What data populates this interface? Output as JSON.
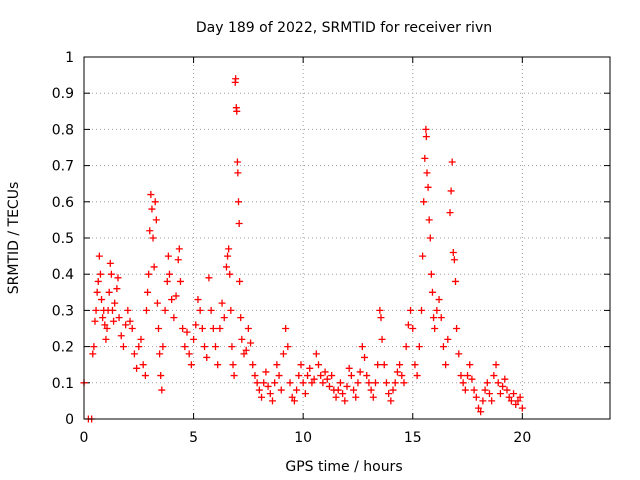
{
  "chart_data": {
    "type": "scatter",
    "title": "Day 189 of 2022, SRMTID for receiver rivn",
    "xlabel": "GPS time / hours",
    "ylabel": "SRMTID / TECUs",
    "xlim": [
      0,
      24
    ],
    "ylim": [
      0,
      1
    ],
    "xticks": [
      0,
      5,
      10,
      15,
      20
    ],
    "xtick_labels": [
      "0",
      "5",
      "10",
      "15",
      "20"
    ],
    "yticks": [
      0,
      0.1,
      0.2,
      0.3,
      0.4,
      0.5,
      0.6,
      0.7,
      0.8,
      0.9,
      1
    ],
    "ytick_labels": [
      "0",
      "0.1",
      "0.2",
      "0.3",
      "0.4",
      "0.5",
      "0.6",
      "0.7",
      "0.8",
      "0.9",
      "1"
    ],
    "grid": true,
    "marker": "+",
    "series": [
      {
        "name": "SRMTID",
        "color": "#ff0000",
        "points": [
          [
            0.0,
            0.1
          ],
          [
            0.2,
            0.0
          ],
          [
            0.35,
            0.0
          ],
          [
            0.4,
            0.18
          ],
          [
            0.45,
            0.2
          ],
          [
            0.5,
            0.27
          ],
          [
            0.55,
            0.3
          ],
          [
            0.6,
            0.35
          ],
          [
            0.65,
            0.38
          ],
          [
            0.7,
            0.45
          ],
          [
            0.75,
            0.4
          ],
          [
            0.8,
            0.33
          ],
          [
            0.85,
            0.28
          ],
          [
            0.9,
            0.3
          ],
          [
            0.95,
            0.26
          ],
          [
            1.0,
            0.22
          ],
          [
            1.05,
            0.25
          ],
          [
            1.1,
            0.3
          ],
          [
            1.15,
            0.35
          ],
          [
            1.2,
            0.43
          ],
          [
            1.25,
            0.4
          ],
          [
            1.3,
            0.3
          ],
          [
            1.35,
            0.27
          ],
          [
            1.4,
            0.32
          ],
          [
            1.5,
            0.36
          ],
          [
            1.55,
            0.39
          ],
          [
            1.6,
            0.28
          ],
          [
            1.7,
            0.23
          ],
          [
            1.8,
            0.2
          ],
          [
            1.9,
            0.26
          ],
          [
            2.0,
            0.3
          ],
          [
            2.1,
            0.27
          ],
          [
            2.2,
            0.25
          ],
          [
            2.3,
            0.18
          ],
          [
            2.4,
            0.14
          ],
          [
            2.5,
            0.2
          ],
          [
            2.6,
            0.22
          ],
          [
            2.7,
            0.15
          ],
          [
            2.8,
            0.12
          ],
          [
            2.85,
            0.3
          ],
          [
            2.9,
            0.35
          ],
          [
            2.95,
            0.4
          ],
          [
            3.0,
            0.52
          ],
          [
            3.05,
            0.62
          ],
          [
            3.1,
            0.58
          ],
          [
            3.15,
            0.5
          ],
          [
            3.2,
            0.42
          ],
          [
            3.25,
            0.6
          ],
          [
            3.3,
            0.55
          ],
          [
            3.35,
            0.32
          ],
          [
            3.4,
            0.25
          ],
          [
            3.45,
            0.18
          ],
          [
            3.5,
            0.12
          ],
          [
            3.55,
            0.08
          ],
          [
            3.6,
            0.2
          ],
          [
            3.7,
            0.3
          ],
          [
            3.8,
            0.38
          ],
          [
            3.85,
            0.45
          ],
          [
            3.9,
            0.4
          ],
          [
            4.0,
            0.33
          ],
          [
            4.1,
            0.28
          ],
          [
            4.2,
            0.34
          ],
          [
            4.3,
            0.44
          ],
          [
            4.35,
            0.47
          ],
          [
            4.4,
            0.38
          ],
          [
            4.5,
            0.25
          ],
          [
            4.6,
            0.2
          ],
          [
            4.7,
            0.24
          ],
          [
            4.8,
            0.18
          ],
          [
            4.9,
            0.15
          ],
          [
            5.0,
            0.22
          ],
          [
            5.1,
            0.26
          ],
          [
            5.2,
            0.33
          ],
          [
            5.3,
            0.3
          ],
          [
            5.4,
            0.25
          ],
          [
            5.5,
            0.2
          ],
          [
            5.6,
            0.17
          ],
          [
            5.7,
            0.39
          ],
          [
            5.8,
            0.3
          ],
          [
            5.9,
            0.25
          ],
          [
            6.0,
            0.2
          ],
          [
            6.1,
            0.15
          ],
          [
            6.2,
            0.25
          ],
          [
            6.3,
            0.32
          ],
          [
            6.4,
            0.28
          ],
          [
            6.5,
            0.42
          ],
          [
            6.55,
            0.45
          ],
          [
            6.6,
            0.47
          ],
          [
            6.65,
            0.4
          ],
          [
            6.7,
            0.3
          ],
          [
            6.75,
            0.2
          ],
          [
            6.8,
            0.15
          ],
          [
            6.85,
            0.12
          ],
          [
            6.9,
            0.93
          ],
          [
            6.92,
            0.94
          ],
          [
            6.95,
            0.86
          ],
          [
            6.97,
            0.85
          ],
          [
            7.0,
            0.71
          ],
          [
            7.02,
            0.68
          ],
          [
            7.05,
            0.6
          ],
          [
            7.08,
            0.54
          ],
          [
            7.1,
            0.38
          ],
          [
            7.15,
            0.28
          ],
          [
            7.2,
            0.22
          ],
          [
            7.3,
            0.18
          ],
          [
            7.4,
            0.19
          ],
          [
            7.5,
            0.25
          ],
          [
            7.6,
            0.21
          ],
          [
            7.7,
            0.15
          ],
          [
            7.8,
            0.12
          ],
          [
            7.9,
            0.1
          ],
          [
            8.0,
            0.08
          ],
          [
            8.1,
            0.06
          ],
          [
            8.2,
            0.1
          ],
          [
            8.3,
            0.13
          ],
          [
            8.4,
            0.09
          ],
          [
            8.5,
            0.07
          ],
          [
            8.6,
            0.05
          ],
          [
            8.7,
            0.1
          ],
          [
            8.8,
            0.15
          ],
          [
            8.9,
            0.12
          ],
          [
            9.0,
            0.08
          ],
          [
            9.1,
            0.18
          ],
          [
            9.2,
            0.25
          ],
          [
            9.3,
            0.2
          ],
          [
            9.4,
            0.1
          ],
          [
            9.5,
            0.06
          ],
          [
            9.6,
            0.05
          ],
          [
            9.7,
            0.08
          ],
          [
            9.8,
            0.12
          ],
          [
            9.9,
            0.15
          ],
          [
            10.0,
            0.1
          ],
          [
            10.1,
            0.07
          ],
          [
            10.2,
            0.12
          ],
          [
            10.3,
            0.14
          ],
          [
            10.4,
            0.1
          ],
          [
            10.5,
            0.11
          ],
          [
            10.6,
            0.18
          ],
          [
            10.7,
            0.15
          ],
          [
            10.8,
            0.12
          ],
          [
            10.9,
            0.1
          ],
          [
            11.0,
            0.13
          ],
          [
            11.1,
            0.11
          ],
          [
            11.2,
            0.09
          ],
          [
            11.3,
            0.12
          ],
          [
            11.4,
            0.08
          ],
          [
            11.5,
            0.06
          ],
          [
            11.6,
            0.08
          ],
          [
            11.7,
            0.1
          ],
          [
            11.8,
            0.07
          ],
          [
            11.9,
            0.05
          ],
          [
            12.0,
            0.09
          ],
          [
            12.1,
            0.14
          ],
          [
            12.2,
            0.12
          ],
          [
            12.3,
            0.08
          ],
          [
            12.4,
            0.06
          ],
          [
            12.5,
            0.1
          ],
          [
            12.6,
            0.13
          ],
          [
            12.7,
            0.2
          ],
          [
            12.8,
            0.17
          ],
          [
            12.9,
            0.12
          ],
          [
            13.0,
            0.1
          ],
          [
            13.1,
            0.08
          ],
          [
            13.2,
            0.06
          ],
          [
            13.3,
            0.1
          ],
          [
            13.4,
            0.15
          ],
          [
            13.5,
            0.3
          ],
          [
            13.55,
            0.28
          ],
          [
            13.6,
            0.22
          ],
          [
            13.7,
            0.15
          ],
          [
            13.8,
            0.1
          ],
          [
            13.9,
            0.07
          ],
          [
            14.0,
            0.05
          ],
          [
            14.1,
            0.08
          ],
          [
            14.2,
            0.1
          ],
          [
            14.3,
            0.13
          ],
          [
            14.4,
            0.15
          ],
          [
            14.5,
            0.12
          ],
          [
            14.6,
            0.1
          ],
          [
            14.7,
            0.2
          ],
          [
            14.8,
            0.26
          ],
          [
            14.9,
            0.3
          ],
          [
            15.0,
            0.25
          ],
          [
            15.1,
            0.15
          ],
          [
            15.2,
            0.12
          ],
          [
            15.3,
            0.2
          ],
          [
            15.4,
            0.3
          ],
          [
            15.45,
            0.45
          ],
          [
            15.5,
            0.6
          ],
          [
            15.55,
            0.72
          ],
          [
            15.6,
            0.8
          ],
          [
            15.62,
            0.78
          ],
          [
            15.65,
            0.68
          ],
          [
            15.7,
            0.64
          ],
          [
            15.75,
            0.55
          ],
          [
            15.8,
            0.5
          ],
          [
            15.85,
            0.4
          ],
          [
            15.9,
            0.35
          ],
          [
            15.95,
            0.28
          ],
          [
            16.0,
            0.25
          ],
          [
            16.1,
            0.3
          ],
          [
            16.2,
            0.33
          ],
          [
            16.3,
            0.28
          ],
          [
            16.4,
            0.2
          ],
          [
            16.5,
            0.15
          ],
          [
            16.6,
            0.22
          ],
          [
            16.7,
            0.57
          ],
          [
            16.75,
            0.63
          ],
          [
            16.8,
            0.71
          ],
          [
            16.85,
            0.46
          ],
          [
            16.9,
            0.44
          ],
          [
            16.95,
            0.38
          ],
          [
            17.0,
            0.25
          ],
          [
            17.1,
            0.18
          ],
          [
            17.2,
            0.12
          ],
          [
            17.3,
            0.1
          ],
          [
            17.4,
            0.08
          ],
          [
            17.5,
            0.12
          ],
          [
            17.6,
            0.15
          ],
          [
            17.7,
            0.11
          ],
          [
            17.8,
            0.08
          ],
          [
            17.9,
            0.06
          ],
          [
            18.0,
            0.03
          ],
          [
            18.1,
            0.02
          ],
          [
            18.2,
            0.05
          ],
          [
            18.3,
            0.08
          ],
          [
            18.4,
            0.1
          ],
          [
            18.5,
            0.07
          ],
          [
            18.6,
            0.05
          ],
          [
            18.7,
            0.12
          ],
          [
            18.8,
            0.15
          ],
          [
            18.9,
            0.1
          ],
          [
            19.0,
            0.07
          ],
          [
            19.1,
            0.09
          ],
          [
            19.2,
            0.11
          ],
          [
            19.3,
            0.08
          ],
          [
            19.4,
            0.06
          ],
          [
            19.5,
            0.05
          ],
          [
            19.6,
            0.07
          ],
          [
            19.7,
            0.04
          ],
          [
            19.8,
            0.05
          ],
          [
            19.9,
            0.06
          ],
          [
            20.0,
            0.03
          ]
        ]
      }
    ]
  }
}
